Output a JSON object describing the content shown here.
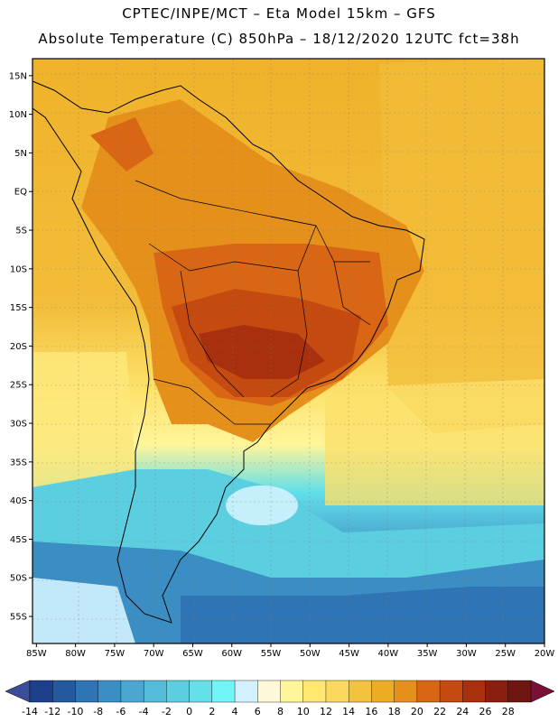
{
  "header": {
    "line1": "CPTEC/INPE/MCT –  Eta Model 15km – GFS",
    "line2": "Absolute Temperature (C) 850hPa – 18/12/2020 12UTC fct=38h"
  },
  "map": {
    "lat_labels": [
      "15N",
      "10N",
      "5N",
      "EQ",
      "5S",
      "10S",
      "15S",
      "20S",
      "25S",
      "30S",
      "35S",
      "40S",
      "45S",
      "50S",
      "55S"
    ],
    "lat_values": [
      15,
      10,
      5,
      0,
      -5,
      -10,
      -15,
      -20,
      -25,
      -30,
      -35,
      -40,
      -45,
      -50,
      -55
    ],
    "lon_labels": [
      "85W",
      "80W",
      "75W",
      "70W",
      "65W",
      "60W",
      "55W",
      "50W",
      "45W",
      "40W",
      "35W",
      "30W",
      "25W",
      "20W"
    ],
    "lon_values": [
      -85,
      -80,
      -75,
      -70,
      -65,
      -60,
      -55,
      -50,
      -45,
      -40,
      -35,
      -30,
      -25,
      -20
    ],
    "lat_range": [
      -58.5,
      17.2
    ],
    "lon_range": [
      -85.5,
      -20.0
    ]
  },
  "colorbar": {
    "labels": [
      "-14",
      "-12",
      "-10",
      "-8",
      "-6",
      "-4",
      "-2",
      "0",
      "2",
      "4",
      "6",
      "8",
      "10",
      "12",
      "14",
      "16",
      "18",
      "20",
      "22",
      "24",
      "26",
      "28"
    ],
    "colors": [
      "#1d3f8c",
      "#2459a0",
      "#2f74b4",
      "#3b8ec3",
      "#4aa7cf",
      "#56bbd8",
      "#5bcfe0",
      "#63e0ea",
      "#6ff7f7",
      "#d2f2ff",
      "#fff8d8",
      "#fff59a",
      "#ffe770",
      "#fad95c",
      "#f3c340",
      "#ecad22",
      "#e6901c",
      "#d86614",
      "#c54a10",
      "#a8300e",
      "#8a1f10",
      "#6e1712"
    ],
    "min_color": "#3a4c9a",
    "max_color": "#7a0f38"
  }
}
